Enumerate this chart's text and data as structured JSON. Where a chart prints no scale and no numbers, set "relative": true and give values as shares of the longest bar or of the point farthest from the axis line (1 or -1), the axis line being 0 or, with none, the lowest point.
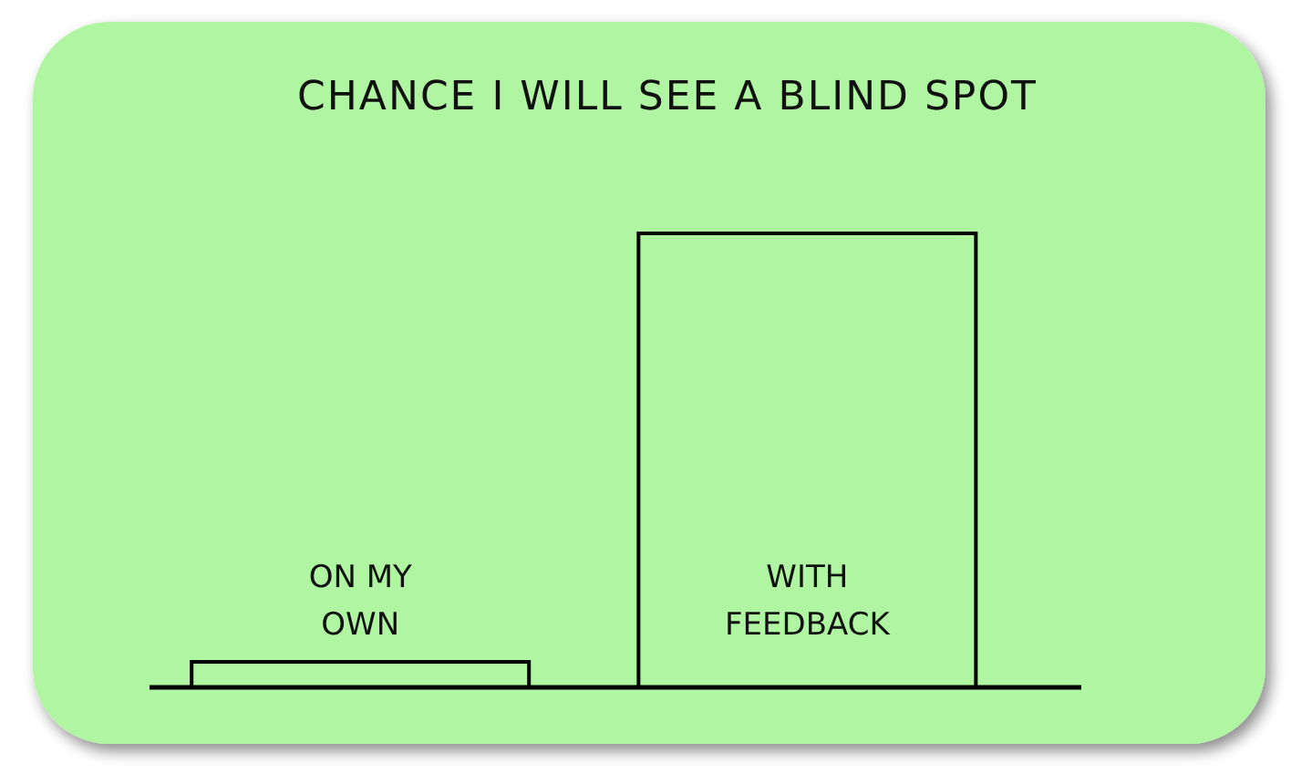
{
  "chart_data": {
    "type": "bar",
    "title": "CHANCE I WILL SEE A BLIND SPOT",
    "categories": [
      "ON MY OWN",
      "WITH FEEDBACK"
    ],
    "values": [
      0.06,
      1
    ],
    "relative": true,
    "color": "#000000"
  }
}
